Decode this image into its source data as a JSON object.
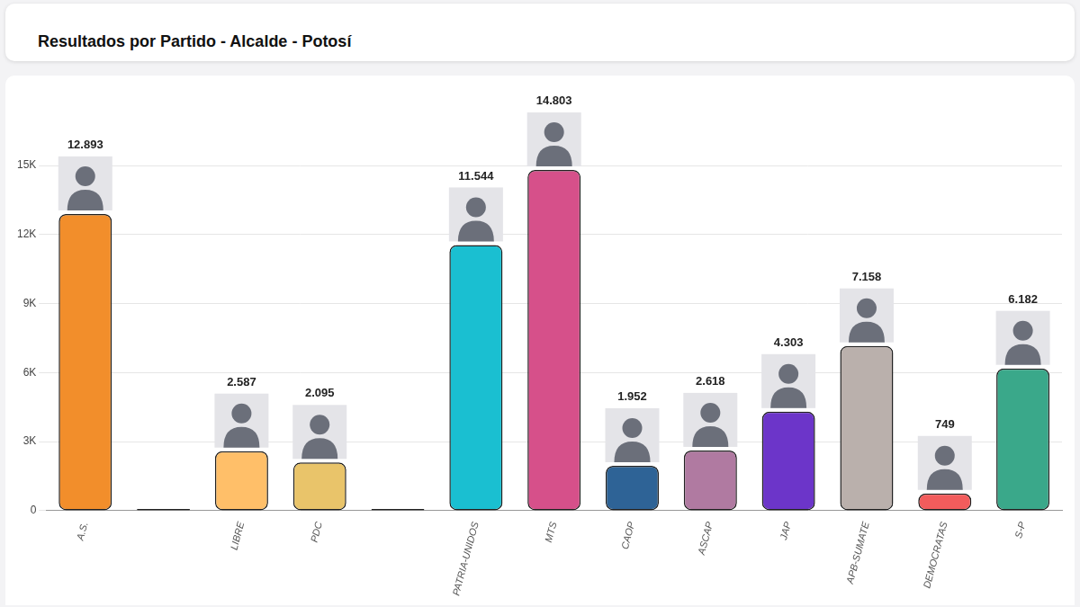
{
  "chart_data": {
    "type": "bar",
    "title": "Resultados por Partido - Alcalde - Potosí",
    "categories": [
      "A.S.",
      null,
      "LIBRE",
      "PDC",
      null,
      "PATRIA-UNIDOS",
      "MTS",
      "CAOP",
      "ASCAP",
      "JAP",
      "APB-SUMATE",
      "DEMOCRATAS",
      "S-P"
    ],
    "values": [
      12893,
      0,
      2587,
      2095,
      0,
      11544,
      14803,
      1952,
      2618,
      4303,
      7158,
      749,
      6182
    ],
    "value_labels": [
      "12.893",
      null,
      "2.587",
      "2.095",
      null,
      "11.544",
      "14.803",
      "1.952",
      "2.618",
      "4.303",
      "7.158",
      "749",
      "6.182"
    ],
    "colors": [
      "#f28e2b",
      "#555555",
      "#ffbf69",
      "#e9c46a",
      "#555555",
      "#1abfd1",
      "#d6508a",
      "#2e6396",
      "#b07aa1",
      "#6c35c9",
      "#bab0ac",
      "#f25c5c",
      "#3aa88a"
    ],
    "ylim": [
      0,
      15000
    ],
    "yticks": [
      0,
      {
        "value": 3000,
        "label": "3K"
      },
      {
        "value": 6000,
        "label": "6K"
      },
      {
        "value": 9000,
        "label": "9K"
      },
      {
        "value": 12000,
        "label": "12K"
      },
      {
        "value": 15000,
        "label": "15K"
      }
    ],
    "grid": true,
    "data_labels": true
  }
}
